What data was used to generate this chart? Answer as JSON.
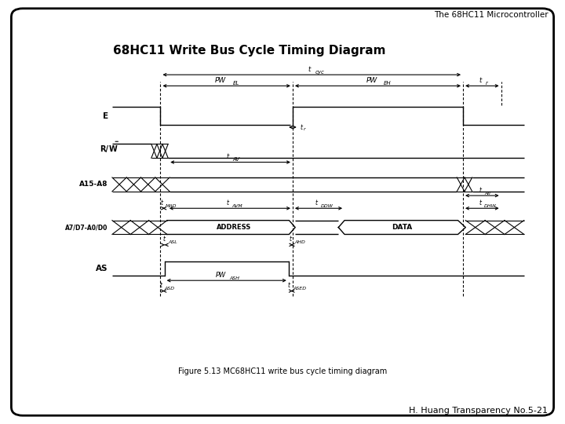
{
  "title": "68HC11 Write Bus Cycle Timing Diagram",
  "header_text": "The 68HC11 Microcontroller",
  "footer_text": "H. Huang Transparency No.5-21",
  "figure_caption": "Figure 5.13 MC68HC11 write bus cycle timing diagram",
  "bg_color": "#ffffff",
  "line_color": "#000000"
}
